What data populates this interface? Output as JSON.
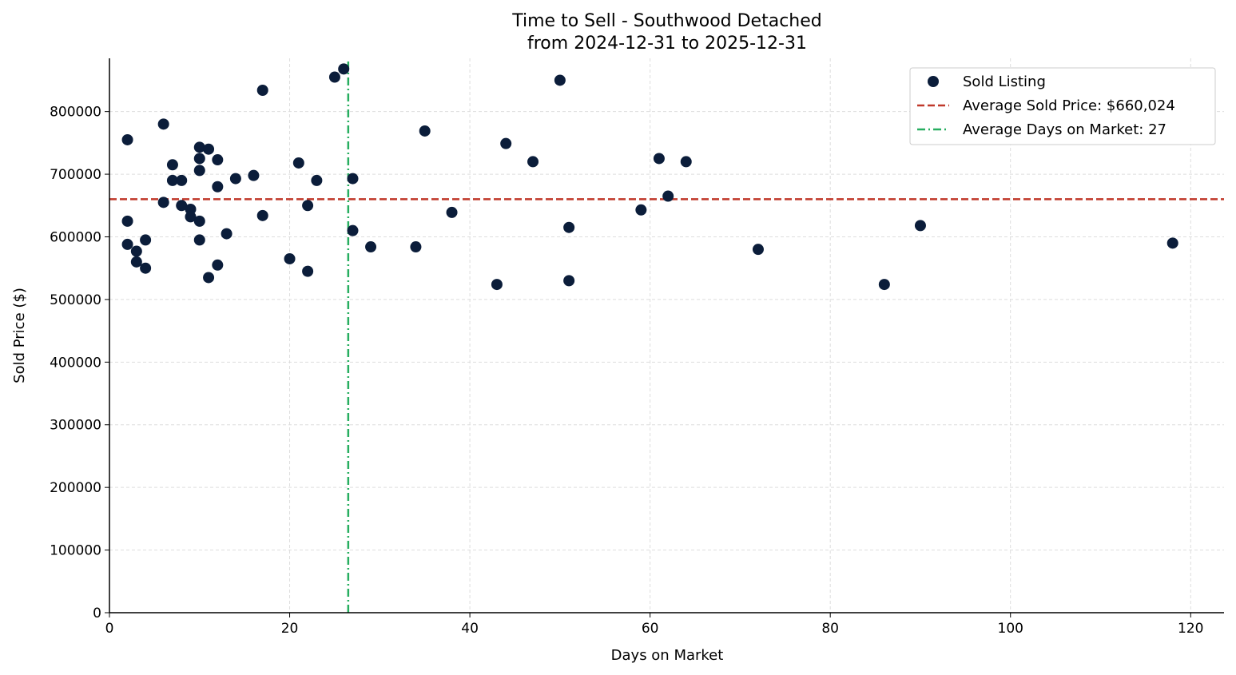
{
  "chart_data": {
    "type": "scatter",
    "title": "Time to Sell - Southwood Detached",
    "subtitle": "from 2024-12-31 to 2025-12-31",
    "xlabel": "Days on Market",
    "ylabel": "Sold Price ($)",
    "xlim": [
      0,
      123.7
    ],
    "ylim": [
      0,
      885000
    ],
    "xticks": [
      0,
      20,
      40,
      60,
      80,
      100,
      120
    ],
    "yticks": [
      0,
      100000,
      200000,
      300000,
      400000,
      500000,
      600000,
      700000,
      800000
    ],
    "grid": true,
    "legend_position": "top-right",
    "colors": {
      "points": "#0b1d3a",
      "avg_price": "#c0392b",
      "avg_days": "#27ae60"
    },
    "legend": [
      "Sold Listing",
      "Average Sold Price: $660,024",
      "Average Days on Market: 27"
    ],
    "avg_price": 660024,
    "avg_days": 26.5,
    "points": [
      [
        2,
        755000
      ],
      [
        2,
        625000
      ],
      [
        2,
        588000
      ],
      [
        3,
        577000
      ],
      [
        3,
        560000
      ],
      [
        4,
        595000
      ],
      [
        4,
        550000
      ],
      [
        6,
        780000
      ],
      [
        6,
        655000
      ],
      [
        7,
        715000
      ],
      [
        7,
        690000
      ],
      [
        8,
        690000
      ],
      [
        8,
        650000
      ],
      [
        9,
        644000
      ],
      [
        9,
        632000
      ],
      [
        10,
        743000
      ],
      [
        10,
        725000
      ],
      [
        10,
        706000
      ],
      [
        10,
        625000
      ],
      [
        10,
        595000
      ],
      [
        11,
        740000
      ],
      [
        11,
        535000
      ],
      [
        12,
        723000
      ],
      [
        12,
        680000
      ],
      [
        12,
        555000
      ],
      [
        13,
        605000
      ],
      [
        14,
        693000
      ],
      [
        16,
        698000
      ],
      [
        17,
        834000
      ],
      [
        17,
        634000
      ],
      [
        20,
        565000
      ],
      [
        21,
        718000
      ],
      [
        22,
        650000
      ],
      [
        22,
        545000
      ],
      [
        23,
        690000
      ],
      [
        25,
        855000
      ],
      [
        26,
        868000
      ],
      [
        27,
        693000
      ],
      [
        27,
        610000
      ],
      [
        29,
        584000
      ],
      [
        34,
        584000
      ],
      [
        35,
        769000
      ],
      [
        38,
        639000
      ],
      [
        43,
        524000
      ],
      [
        44,
        749000
      ],
      [
        47,
        720000
      ],
      [
        50,
        850000
      ],
      [
        51,
        615000
      ],
      [
        51,
        530000
      ],
      [
        59,
        643000
      ],
      [
        61,
        725000
      ],
      [
        62,
        665000
      ],
      [
        64,
        720000
      ],
      [
        72,
        580000
      ],
      [
        86,
        524000
      ],
      [
        90,
        618000
      ],
      [
        118,
        590000
      ]
    ]
  }
}
